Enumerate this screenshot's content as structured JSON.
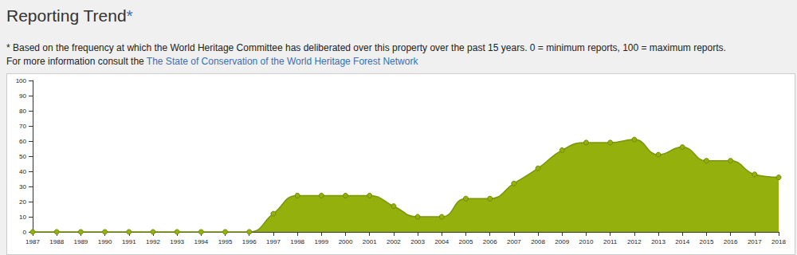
{
  "chart_data": {
    "type": "area",
    "title": "Reporting Trend*",
    "subtitle": "* Based on the frequency at which the World Heritage Committee has deliberated over this property over the past 15 years. 0 = minimum reports, 100 = maximum reports.",
    "annotations": [
      "For more information consult the",
      "The State of Conservation of the World Heritage Forest Network"
    ],
    "categories": [
      "1987",
      "1988",
      "1989",
      "1990",
      "1991",
      "1992",
      "1993",
      "1994",
      "1995",
      "1996",
      "1997",
      "1998",
      "1999",
      "2000",
      "2001",
      "2002",
      "2003",
      "2004",
      "2005",
      "2006",
      "2007",
      "2008",
      "2009",
      "2010",
      "2011",
      "2012",
      "2013",
      "2014",
      "2015",
      "2016",
      "2017",
      "2018"
    ],
    "values": [
      0,
      0,
      0,
      0,
      0,
      0,
      0,
      0,
      0,
      0,
      12,
      24,
      24,
      24,
      24,
      17,
      10,
      10,
      22,
      22,
      32,
      42,
      54,
      59,
      59,
      61,
      51,
      56,
      47,
      47,
      38,
      36
    ],
    "color": "#94b00c",
    "marker": "circle",
    "ylim": [
      0,
      100
    ],
    "yticks": [
      0,
      10,
      20,
      30,
      40,
      50,
      60,
      70,
      80,
      90,
      100
    ],
    "grid": false
  }
}
